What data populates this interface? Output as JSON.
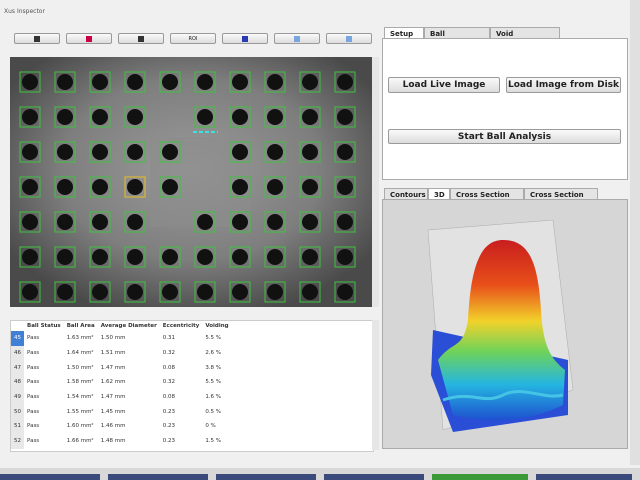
{
  "window": {
    "title": "Xus Inspector"
  },
  "toolbar": {
    "roi": "ROI"
  },
  "table": {
    "columns": [
      "Ball Status",
      "Ball Area",
      "Average Diameter",
      "Eccentricity",
      "Voiding"
    ],
    "rows": [
      [
        "45",
        "Pass",
        "1.63 mm²",
        "1.50 mm",
        "0.31",
        "5.5 %"
      ],
      [
        "46",
        "Pass",
        "1.64 mm²",
        "1.51 mm",
        "0.32",
        "2.6 %"
      ],
      [
        "47",
        "Pass",
        "1.50 mm²",
        "1.47 mm",
        "0.08",
        "3.8 %"
      ],
      [
        "48",
        "Pass",
        "1.58 mm²",
        "1.62 mm",
        "0.32",
        "5.5 %"
      ],
      [
        "49",
        "Pass",
        "1.54 mm²",
        "1.47 mm",
        "0.08",
        "1.6 %"
      ],
      [
        "50",
        "Pass",
        "1.55 mm²",
        "1.45 mm",
        "0.23",
        "0.5 %"
      ],
      [
        "51",
        "Pass",
        "1.60 mm²",
        "1.46 mm",
        "0.23",
        "0 %"
      ],
      [
        "52",
        "Pass",
        "1.66 mm²",
        "1.48 mm",
        "0.23",
        "1.5 %"
      ]
    ]
  },
  "setup_tabs": [
    "Setup",
    "Ball Detection",
    "Void Detection"
  ],
  "setup": {
    "load_live": "Load Live Image",
    "load_disk": "Load Image from Disk",
    "start": "Start Ball Analysis"
  },
  "view_tabs": [
    "Contours",
    "3D",
    "Cross Section (y)",
    "Cross Section (z)"
  ]
}
